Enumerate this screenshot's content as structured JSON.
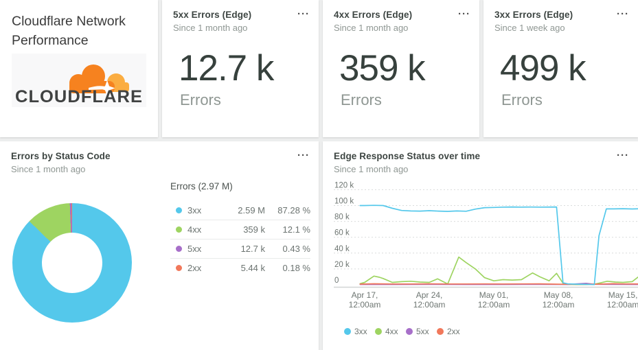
{
  "ui": {
    "menu_icon": "···"
  },
  "header_card": {
    "title": "Cloudflare Network Performance",
    "logo_text": "CLOUDFLARE"
  },
  "kpis": [
    {
      "title": "5xx Errors (Edge)",
      "subtitle": "Since 1 month ago",
      "value": "12.7 k",
      "label": "Errors"
    },
    {
      "title": "4xx Errors (Edge)",
      "subtitle": "Since 1 month ago",
      "value": "359 k",
      "label": "Errors"
    },
    {
      "title": "3xx Errors (Edge)",
      "subtitle": "Since 1 week ago",
      "value": "499 k",
      "label": "Errors"
    }
  ],
  "donut_card": {
    "title": "Errors by Status Code",
    "subtitle": "Since 1 month ago"
  },
  "timeseries_card": {
    "title": "Edge Response Status over time",
    "subtitle": "Since 1 month ago"
  },
  "colors": {
    "status_3xx": "#54c8eb",
    "status_4xx": "#9ed461",
    "status_5xx": "#a76fc9",
    "status_2xx": "#f1785b",
    "text_dark": "#37413d",
    "text_gray": "#8f9793"
  },
  "chart_data": [
    {
      "type": "pie",
      "donut": true,
      "title": "Errors by Status Code",
      "total_label": "Errors (2.97 M)",
      "slices": [
        {
          "label": "3xx",
          "value": "2.59 M",
          "pct": 87.28,
          "pct_label": "87.28 %",
          "color": "#54c8eb"
        },
        {
          "label": "4xx",
          "value": "359 k",
          "pct": 12.1,
          "pct_label": "12.1 %",
          "color": "#9ed461"
        },
        {
          "label": "5xx",
          "value": "12.7 k",
          "pct": 0.43,
          "pct_label": "0.43 %",
          "color": "#a76fc9"
        },
        {
          "label": "2xx",
          "value": "5.44 k",
          "pct": 0.18,
          "pct_label": "0.18 %",
          "color": "#f1785b"
        }
      ]
    },
    {
      "type": "line",
      "title": "Edge Response Status over time",
      "ylim_k": [
        0,
        120
      ],
      "grid": "dotted-horizontal",
      "legend_position": "bottom",
      "y_ticks": [
        {
          "v": 120,
          "label": "120 k"
        },
        {
          "v": 100,
          "label": "100 k"
        },
        {
          "v": 80,
          "label": "80 k"
        },
        {
          "v": 60,
          "label": "60 k"
        },
        {
          "v": 40,
          "label": "40 k"
        },
        {
          "v": 20,
          "label": "20 k"
        },
        {
          "v": 0,
          "label": "0"
        }
      ],
      "x_ticks": [
        {
          "day": 1,
          "l1": "Apr 17,",
          "l2": "12:00am"
        },
        {
          "day": 8,
          "l1": "Apr 24,",
          "l2": "12:00am"
        },
        {
          "day": 15,
          "l1": "May 01,",
          "l2": "12:00am"
        },
        {
          "day": 22,
          "l1": "May 08,",
          "l2": "12:00am"
        },
        {
          "day": 29,
          "l1": "May 15,",
          "l2": "12:00am"
        }
      ],
      "series": [
        {
          "name": "3xx",
          "color": "#54c8eb",
          "points": [
            [
              0.5,
              100
            ],
            [
              1,
              100
            ],
            [
              2,
              100.3
            ],
            [
              3,
              100
            ],
            [
              4,
              96.5
            ],
            [
              5,
              93.8
            ],
            [
              6,
              93.2
            ],
            [
              7,
              93
            ],
            [
              8,
              93.5
            ],
            [
              9,
              93
            ],
            [
              10,
              92.6
            ],
            [
              11,
              93.2
            ],
            [
              12,
              92.8
            ],
            [
              13,
              95.5
            ],
            [
              14,
              97.3
            ],
            [
              15,
              97.6
            ],
            [
              16,
              98
            ],
            [
              17,
              98.2
            ],
            [
              18,
              98
            ],
            [
              19,
              98.1
            ],
            [
              20,
              98
            ],
            [
              21.8,
              98.2
            ],
            [
              22.5,
              2.5
            ],
            [
              23,
              1.2
            ],
            [
              24,
              0.8
            ],
            [
              25,
              0.5
            ],
            [
              25.9,
              0.3
            ],
            [
              26.4,
              62
            ],
            [
              27.2,
              95.8
            ],
            [
              28,
              95.8
            ],
            [
              29,
              96
            ],
            [
              30,
              95.7
            ],
            [
              31,
              96
            ]
          ]
        },
        {
          "name": "4xx",
          "color": "#9ed461",
          "points": [
            [
              0.5,
              1.5
            ],
            [
              1,
              3
            ],
            [
              2,
              11
            ],
            [
              2.6,
              9.5
            ],
            [
              3,
              8
            ],
            [
              4,
              3
            ],
            [
              5,
              4
            ],
            [
              6,
              4.5
            ],
            [
              7,
              3.5
            ],
            [
              8,
              3
            ],
            [
              8.9,
              7.5
            ],
            [
              10,
              1
            ],
            [
              11.2,
              35
            ],
            [
              12,
              28
            ],
            [
              13,
              20
            ],
            [
              14,
              9
            ],
            [
              15,
              5
            ],
            [
              16,
              6.5
            ],
            [
              17,
              6
            ],
            [
              18,
              6.5
            ],
            [
              19.2,
              15
            ],
            [
              20,
              10
            ],
            [
              21,
              5
            ],
            [
              21.8,
              14.5
            ],
            [
              22.5,
              2
            ],
            [
              23,
              0.5
            ],
            [
              24,
              0.3
            ],
            [
              25,
              0.3
            ],
            [
              26,
              1
            ],
            [
              26.6,
              2.5
            ],
            [
              27.3,
              4.5
            ],
            [
              28.2,
              3.5
            ],
            [
              29,
              3
            ],
            [
              30,
              4
            ],
            [
              31,
              13
            ]
          ]
        },
        {
          "name": "5xx",
          "color": "#a76fc9",
          "points": [
            [
              0.5,
              0.4
            ],
            [
              4,
              0.4
            ],
            [
              8,
              0.5
            ],
            [
              12,
              0.4
            ],
            [
              16,
              0.4
            ],
            [
              20,
              0.5
            ],
            [
              23,
              0.4
            ],
            [
              25,
              1.8
            ],
            [
              26,
              0.6
            ],
            [
              28,
              0.5
            ],
            [
              31,
              0.4
            ]
          ]
        },
        {
          "name": "2xx",
          "color": "#f1785b",
          "points": [
            [
              0.5,
              0.9
            ],
            [
              2,
              1.3
            ],
            [
              4,
              1
            ],
            [
              6,
              1
            ],
            [
              8,
              1.2
            ],
            [
              10,
              1
            ],
            [
              12,
              1
            ],
            [
              14,
              1.1
            ],
            [
              16,
              1
            ],
            [
              18,
              1.1
            ],
            [
              20,
              1.2
            ],
            [
              22,
              0.8
            ],
            [
              24,
              0.6
            ],
            [
              26,
              0.8
            ],
            [
              28,
              1.4
            ],
            [
              29,
              1.1
            ],
            [
              31,
              1
            ]
          ]
        }
      ]
    }
  ]
}
